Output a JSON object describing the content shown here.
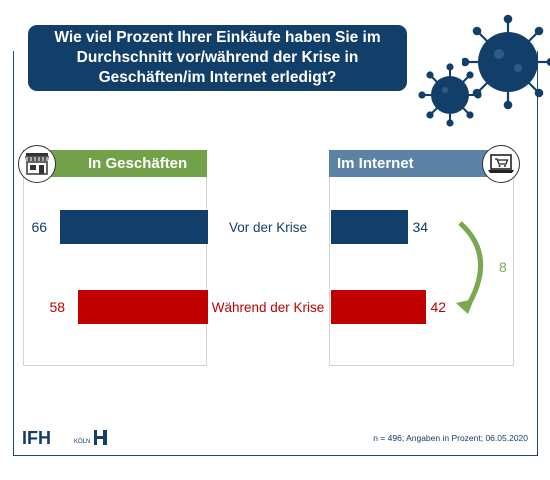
{
  "title_lines": [
    "Wie viel Prozent Ihrer Einkäufe haben Sie im",
    "Durchschnitt vor/während der Krise in",
    "Geschäften/im Internet erledigt?"
  ],
  "panels": {
    "left_header": "In Geschäften",
    "right_header": "Im Internet"
  },
  "chart_data": {
    "type": "bar",
    "categories": [
      "Vor der Krise",
      "Während der Krise"
    ],
    "series": [
      {
        "name": "In Geschäften",
        "values": [
          66,
          58
        ]
      },
      {
        "name": "Im Internet",
        "values": [
          34,
          42
        ]
      }
    ],
    "colors": {
      "Vor der Krise": "#123f69",
      "Während der Krise": "#c00000"
    },
    "change_label": "8"
  },
  "logo": {
    "main": "IFH",
    "city": "KÖLN"
  },
  "footnote": "n = 496; Angaben in Prozent; 06.05.2020",
  "colors": {
    "title_bg": "#123f69",
    "store_header": "#73a14a",
    "online_header": "#5c82a6",
    "arrow": "#7aa84e"
  }
}
